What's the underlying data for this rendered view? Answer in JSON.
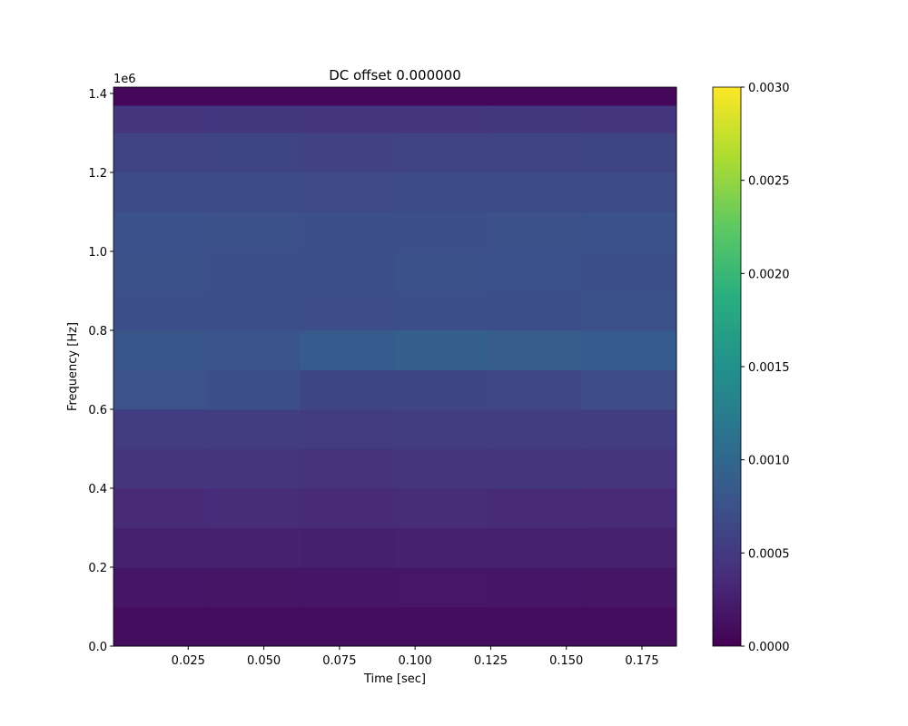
{
  "chart_data": {
    "type": "heatmap",
    "title": "DC offset 0.000000",
    "xlabel": "Time [sec]",
    "ylabel": "Frequency [Hz]",
    "y_offset_label": "1e6",
    "colormap": "viridis",
    "xbins": [
      0.0003,
      0.031,
      0.062,
      0.093,
      0.124,
      0.155,
      0.1864
    ],
    "ybins": [
      0,
      100000,
      200000,
      300000,
      400000,
      500000,
      600000,
      700000,
      800000,
      900000,
      1000000,
      1100000,
      1200000,
      1300000,
      1370000,
      1416000
    ],
    "values": [
      [
        0.0001,
        0.0001,
        0.0001,
        0.0001,
        0.0001,
        0.0001
      ],
      [
        0.00018,
        0.00017,
        0.00018,
        0.00019,
        0.00018,
        0.00017
      ],
      [
        0.00027,
        0.00028,
        0.00026,
        0.00028,
        0.00027,
        0.00028
      ],
      [
        0.00036,
        0.00037,
        0.00035,
        0.00037,
        0.00036,
        0.00036
      ],
      [
        0.00045,
        0.00046,
        0.00044,
        0.00045,
        0.00046,
        0.00045
      ],
      [
        0.00053,
        0.00054,
        0.00052,
        0.00054,
        0.00053,
        0.00054
      ],
      [
        0.00075,
        0.00072,
        0.00062,
        0.00063,
        0.00064,
        0.0007
      ],
      [
        0.0008,
        0.00078,
        0.00085,
        0.0009,
        0.00088,
        0.00086
      ],
      [
        0.00072,
        0.00071,
        0.0007,
        0.00072,
        0.00071,
        0.00073
      ],
      [
        0.00073,
        0.00072,
        0.00071,
        0.00073,
        0.00074,
        0.00072
      ],
      [
        0.00074,
        0.00073,
        0.00072,
        0.00072,
        0.00073,
        0.00074
      ],
      [
        0.00068,
        0.00069,
        0.00067,
        0.00068,
        0.00069,
        0.00068
      ],
      [
        0.0006,
        0.00061,
        0.00059,
        0.0006,
        0.0006,
        0.00061
      ],
      [
        0.00048,
        0.00049,
        0.00047,
        0.00048,
        0.00049,
        0.00048
      ],
      [
        5e-05,
        5e-05,
        5e-05,
        5e-05,
        5e-05,
        5e-05
      ]
    ],
    "xlim": [
      0.0003,
      0.1864
    ],
    "ylim": [
      0,
      1416000
    ],
    "clim": [
      0,
      0.003
    ],
    "xticks": [
      0.025,
      {
        "value": 0.05,
        "label": "0.050"
      },
      0.075,
      {
        "value": 0.1,
        "label": "0.100"
      },
      0.125,
      {
        "value": 0.15,
        "label": "0.150"
      },
      0.175
    ],
    "yticks": [
      {
        "value": 0,
        "label": "0.0"
      },
      {
        "value": 200000,
        "label": "0.2"
      },
      {
        "value": 400000,
        "label": "0.4"
      },
      {
        "value": 600000,
        "label": "0.6"
      },
      {
        "value": 800000,
        "label": "0.8"
      },
      {
        "value": 1000000,
        "label": "1.0"
      },
      {
        "value": 1200000,
        "label": "1.2"
      },
      {
        "value": 1400000,
        "label": "1.4"
      }
    ],
    "cticks": [
      {
        "value": 0,
        "label": "0.0000"
      },
      {
        "value": 0.0005,
        "label": "0.0005"
      },
      {
        "value": 0.001,
        "label": "0.0010"
      },
      {
        "value": 0.0015,
        "label": "0.0015"
      },
      {
        "value": 0.002,
        "label": "0.0020"
      },
      {
        "value": 0.0025,
        "label": "0.0025"
      },
      {
        "value": 0.003,
        "label": "0.0030"
      }
    ]
  }
}
